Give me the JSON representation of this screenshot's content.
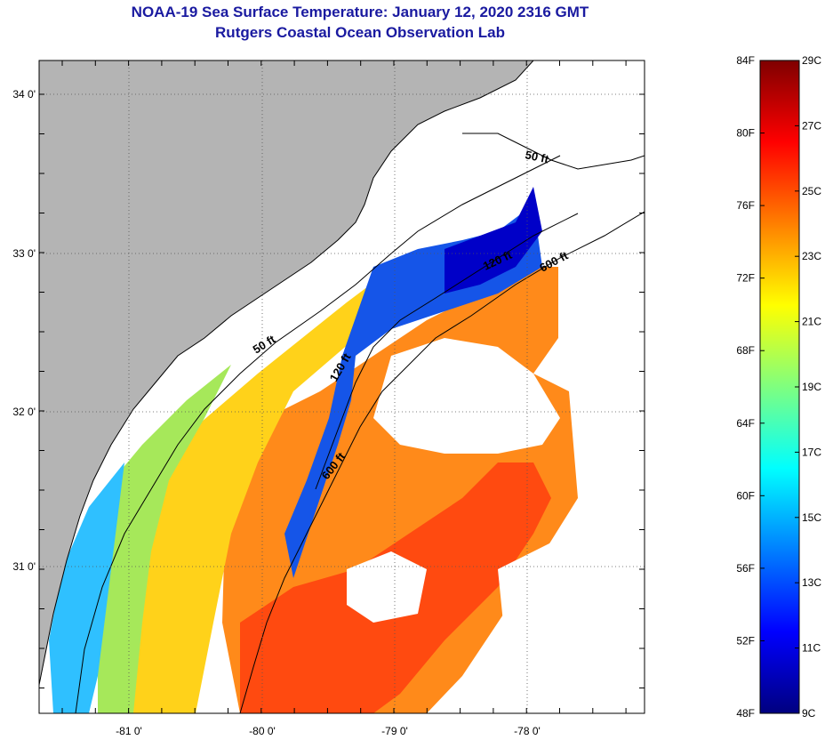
{
  "header": {
    "title": "NOAA-19 Sea Surface Temperature:  January 12, 2020 2316 GMT",
    "subtitle": "Rutgers Coastal Ocean Observation Lab"
  },
  "map": {
    "latitude_labels": [
      "34 0'",
      "33 0'",
      "32 0'",
      "31 0'"
    ],
    "longitude_labels": [
      "-81 0'",
      "-80 0'",
      "-79 0'",
      "-78 0'"
    ],
    "contour_labels": {
      "c50_north": "50 ft",
      "c50_south": "50 ft",
      "c120_north": "120 ft",
      "c120_south": "120 ft",
      "c600_north": "600 ft",
      "c600_south": "600 ft"
    },
    "colors": {
      "land": "#b4b4b4",
      "cloud": "#ffffff",
      "frame": "#000000"
    }
  },
  "colorbar": {
    "fahrenheit_labels": [
      "84F",
      "80F",
      "76F",
      "72F",
      "68F",
      "64F",
      "60F",
      "56F",
      "52F",
      "48F"
    ],
    "celsius_labels": [
      "29C",
      "27C",
      "25C",
      "23C",
      "21C",
      "19C",
      "17C",
      "15C",
      "13C",
      "11C",
      "9C"
    ],
    "colormap": [
      "#00007f",
      "#0000ff",
      "#007fff",
      "#00ffff",
      "#7fff7f",
      "#ffff00",
      "#ff7f00",
      "#ff0000",
      "#7f0000"
    ]
  }
}
